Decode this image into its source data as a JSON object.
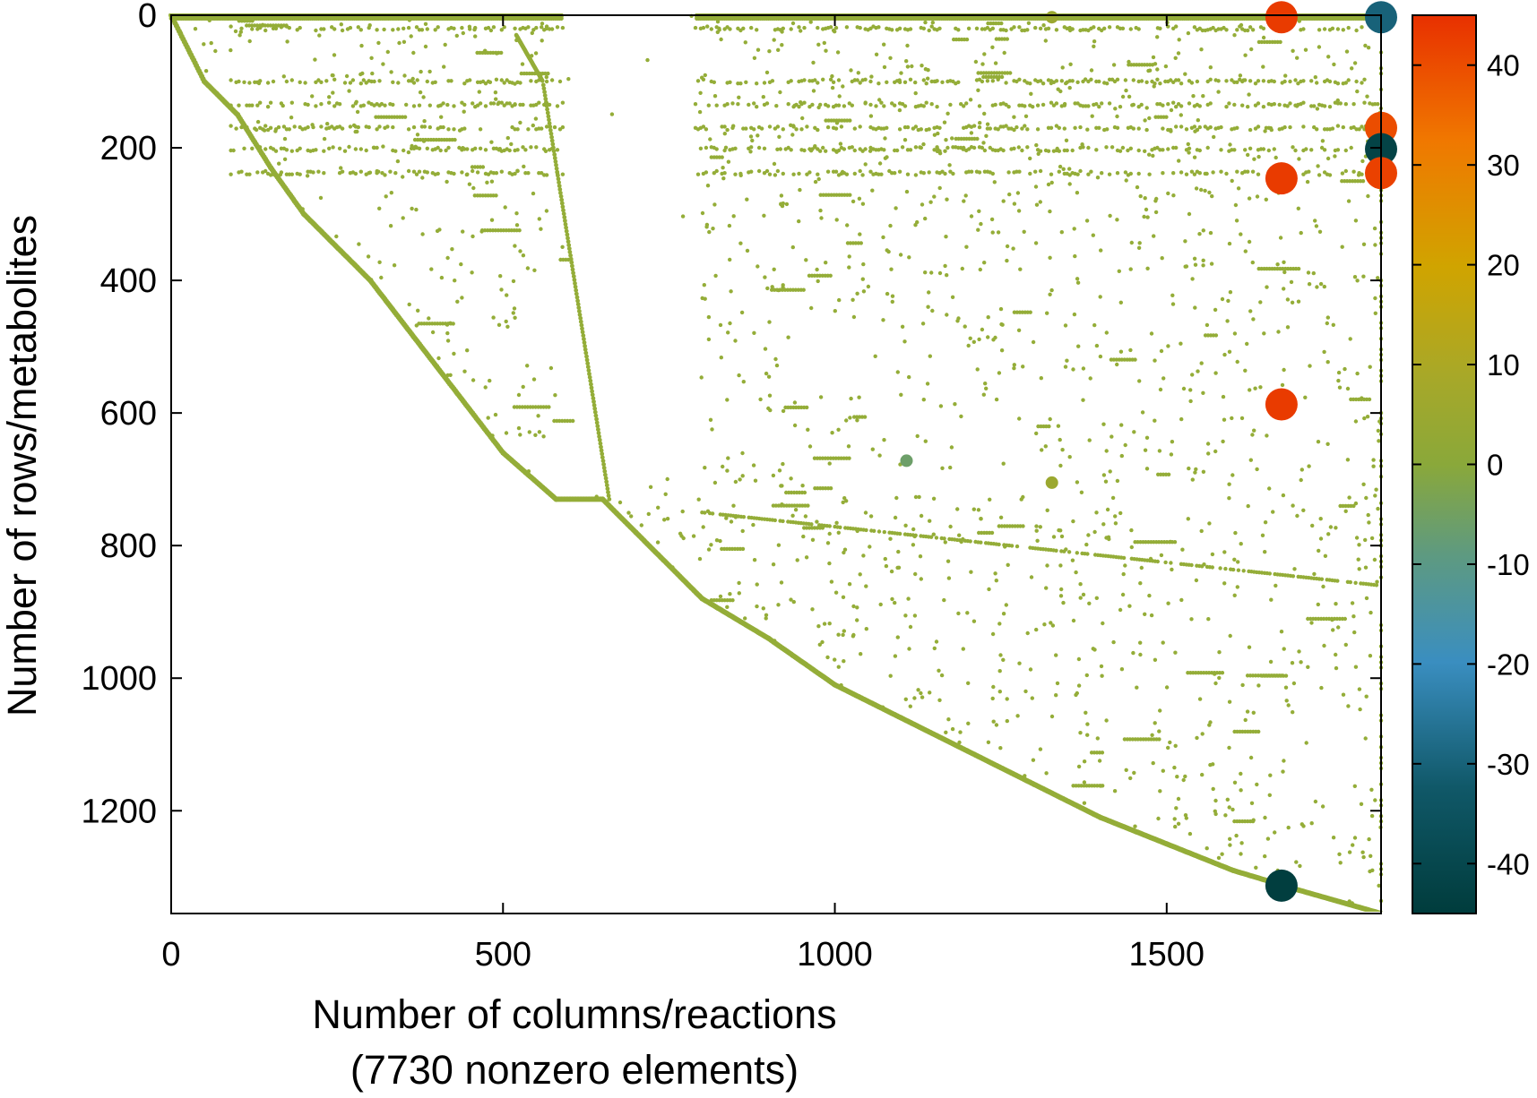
{
  "chart_data": {
    "type": "scatter",
    "title": "",
    "xlabel": "Number of columns/reactions",
    "xlabel_sub": "(7730 nonzero elements)",
    "ylabel": "Number of rows/metabolites",
    "xlim": [
      0,
      1823
    ],
    "ylim": [
      0,
      1355
    ],
    "y_inverted": true,
    "x_ticks": [
      0,
      500,
      1000,
      1500
    ],
    "y_ticks": [
      0,
      200,
      400,
      600,
      800,
      1000,
      1200
    ],
    "grid": false,
    "legend": "none",
    "colorbar": {
      "range": [
        -45,
        45
      ],
      "ticks": [
        40,
        30,
        20,
        10,
        0,
        -10,
        -20,
        -30,
        -40
      ],
      "colormap": [
        "#003c3c",
        "#105868",
        "#3a8ec0",
        "#5e9a80",
        "#8aa83a",
        "#a8a828",
        "#d0a400",
        "#f07800",
        "#e83000"
      ]
    },
    "base_color": "#94ad38",
    "series": [
      {
        "values_description": "main diagonal profile",
        "points": [
          [
            0,
            0
          ],
          [
            50,
            100
          ],
          [
            100,
            150
          ],
          [
            150,
            230
          ],
          [
            200,
            300
          ],
          [
            300,
            400
          ],
          [
            400,
            530
          ],
          [
            500,
            660
          ],
          [
            580,
            730
          ],
          [
            650,
            730
          ],
          [
            700,
            780
          ],
          [
            800,
            880
          ],
          [
            900,
            940
          ],
          [
            1000,
            1010
          ],
          [
            1100,
            1060
          ],
          [
            1200,
            1110
          ],
          [
            1300,
            1160
          ],
          [
            1400,
            1210
          ],
          [
            1500,
            1250
          ],
          [
            1600,
            1290
          ],
          [
            1700,
            1320
          ],
          [
            1823,
            1355
          ]
        ]
      }
    ],
    "highlighted_points": [
      {
        "x": 1673,
        "y": 3,
        "value": 43
      },
      {
        "x": 1823,
        "y": 3,
        "value": -30
      },
      {
        "x": 1823,
        "y": 170,
        "value": 40
      },
      {
        "x": 1823,
        "y": 202,
        "value": -42
      },
      {
        "x": 1673,
        "y": 246,
        "value": 43
      },
      {
        "x": 1823,
        "y": 238,
        "value": 42
      },
      {
        "x": 1673,
        "y": 587,
        "value": 43
      },
      {
        "x": 1673,
        "y": 1313,
        "value": -44
      },
      {
        "x": 1108,
        "y": 672,
        "value": -6
      },
      {
        "x": 1327,
        "y": 705,
        "value": 5
      },
      {
        "x": 1327,
        "y": 3,
        "value": 5
      }
    ]
  }
}
